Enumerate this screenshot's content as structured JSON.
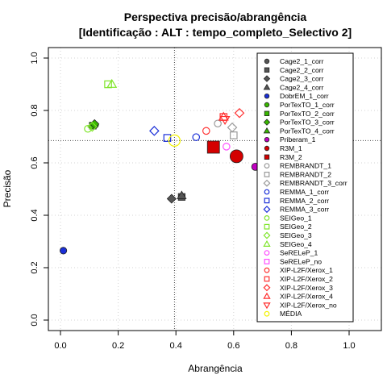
{
  "chart_data": {
    "type": "scatter",
    "title": "Perspectiva precisão/abrangência",
    "subtitle": "[Identificação : ALT : tempo_completo_Selectivo 2]",
    "xlabel": "Abrangência",
    "ylabel": "Precisão",
    "xlim": [
      0,
      1
    ],
    "ylim": [
      0,
      1
    ],
    "x_ticks": [
      "0.0",
      "0.2",
      "0.4",
      "0.6",
      "0.8",
      "1.0"
    ],
    "y_ticks": [
      "0.0",
      "0.2",
      "0.4",
      "0.6",
      "0.8",
      "1.0"
    ],
    "grid": true,
    "legend_position": "right",
    "reference_lines": {
      "x": 0.395,
      "y": 0.685
    },
    "series": [
      {
        "name": "Cage2_1_corr",
        "color": "#555555",
        "marker": "circle-filled",
        "points": []
      },
      {
        "name": "Cage2_2_corr",
        "color": "#555555",
        "marker": "square-filled",
        "points": [
          [
            0.42,
            0.47
          ]
        ]
      },
      {
        "name": "Cage2_3_corr",
        "color": "#555555",
        "marker": "diamond-filled",
        "points": [
          [
            0.385,
            0.463
          ]
        ]
      },
      {
        "name": "Cage2_4_corr",
        "color": "#555555",
        "marker": "triangle-filled",
        "points": [
          [
            0.42,
            0.475
          ]
        ]
      },
      {
        "name": "DobrEM_1_corr",
        "color": "#1a2fd8",
        "marker": "circle-filled",
        "points": [
          [
            0.01,
            0.265
          ]
        ]
      },
      {
        "name": "PorTexTO_1_corr",
        "color": "#39b800",
        "marker": "circle-filled",
        "points": [
          [
            0.12,
            0.745
          ]
        ]
      },
      {
        "name": "PorTexTO_2_corr",
        "color": "#39b800",
        "marker": "square-filled",
        "points": [
          [
            0.112,
            0.742
          ]
        ]
      },
      {
        "name": "PorTexTO_3_corr",
        "color": "#39b800",
        "marker": "diamond-filled",
        "points": [
          [
            0.118,
            0.748
          ]
        ]
      },
      {
        "name": "PorTexTO_4_corr",
        "color": "#39b800",
        "marker": "triangle-filled",
        "points": []
      },
      {
        "name": "Priberam_1",
        "color": "#c000c0",
        "marker": "circle-filled",
        "points": [
          [
            0.675,
            0.585
          ]
        ]
      },
      {
        "name": "R3M_1",
        "color": "#d40000",
        "marker": "circle-filled",
        "points": [
          [
            0.61,
            0.625
          ]
        ]
      },
      {
        "name": "R3M_2",
        "color": "#d40000",
        "marker": "square-filled",
        "points": [
          [
            0.53,
            0.66
          ]
        ]
      },
      {
        "name": "REMBRANDT_1",
        "color": "#9a9a9a",
        "marker": "circle-open",
        "points": [
          [
            0.545,
            0.75
          ]
        ]
      },
      {
        "name": "REMBRANDT_2",
        "color": "#9a9a9a",
        "marker": "square-open",
        "points": [
          [
            0.6,
            0.705
          ]
        ]
      },
      {
        "name": "REMBRANDT_3_corr",
        "color": "#9a9a9a",
        "marker": "diamond-open",
        "points": [
          [
            0.595,
            0.735
          ]
        ]
      },
      {
        "name": "REMMA_1_corr",
        "color": "#1a2fd8",
        "marker": "circle-open",
        "points": [
          [
            0.47,
            0.698
          ]
        ]
      },
      {
        "name": "REMMA_2_corr",
        "color": "#1a2fd8",
        "marker": "square-open",
        "points": [
          [
            0.37,
            0.695
          ]
        ]
      },
      {
        "name": "REMMA_3_corr",
        "color": "#1a2fd8",
        "marker": "diamond-open",
        "points": [
          [
            0.325,
            0.722
          ]
        ]
      },
      {
        "name": "SEIGeo_1",
        "color": "#7fe52a",
        "marker": "circle-open",
        "points": [
          [
            0.095,
            0.73
          ]
        ]
      },
      {
        "name": "SEIGeo_2",
        "color": "#7fe52a",
        "marker": "square-open",
        "points": [
          [
            0.165,
            0.9
          ]
        ]
      },
      {
        "name": "SEIGeo_3",
        "color": "#7fe52a",
        "marker": "diamond-open",
        "points": [
          [
            0.11,
            0.738
          ]
        ]
      },
      {
        "name": "SEIGeo_4",
        "color": "#7fe52a",
        "marker": "triangle-open",
        "points": [
          [
            0.178,
            0.9
          ]
        ]
      },
      {
        "name": "SeRELeP_1",
        "color": "#ff4dff",
        "marker": "circle-open",
        "points": [
          [
            0.575,
            0.662
          ]
        ]
      },
      {
        "name": "SeRELeP_no",
        "color": "#ff4dff",
        "marker": "square-open",
        "points": []
      },
      {
        "name": "XIP-L2F/Xerox_1",
        "color": "#ff3030",
        "marker": "circle-open",
        "points": [
          [
            0.505,
            0.722
          ]
        ]
      },
      {
        "name": "XIP-L2F/Xerox_2",
        "color": "#ff3030",
        "marker": "square-open",
        "points": [
          [
            0.565,
            0.775
          ]
        ]
      },
      {
        "name": "XIP-L2F/Xerox_3",
        "color": "#ff3030",
        "marker": "diamond-open",
        "points": [
          [
            0.62,
            0.79
          ]
        ]
      },
      {
        "name": "XIP-L2F/Xerox_4",
        "color": "#ff3030",
        "marker": "triangle-open",
        "points": [
          [
            0.565,
            0.775
          ]
        ]
      },
      {
        "name": "XIP-L2F/Xerox_no",
        "color": "#ff3030",
        "marker": "triangle-down-open",
        "points": [
          [
            0.57,
            0.765
          ]
        ]
      },
      {
        "name": "MÉDIA",
        "color": "#f2f200",
        "marker": "circle-open",
        "points": [
          [
            0.395,
            0.685
          ]
        ]
      }
    ]
  }
}
